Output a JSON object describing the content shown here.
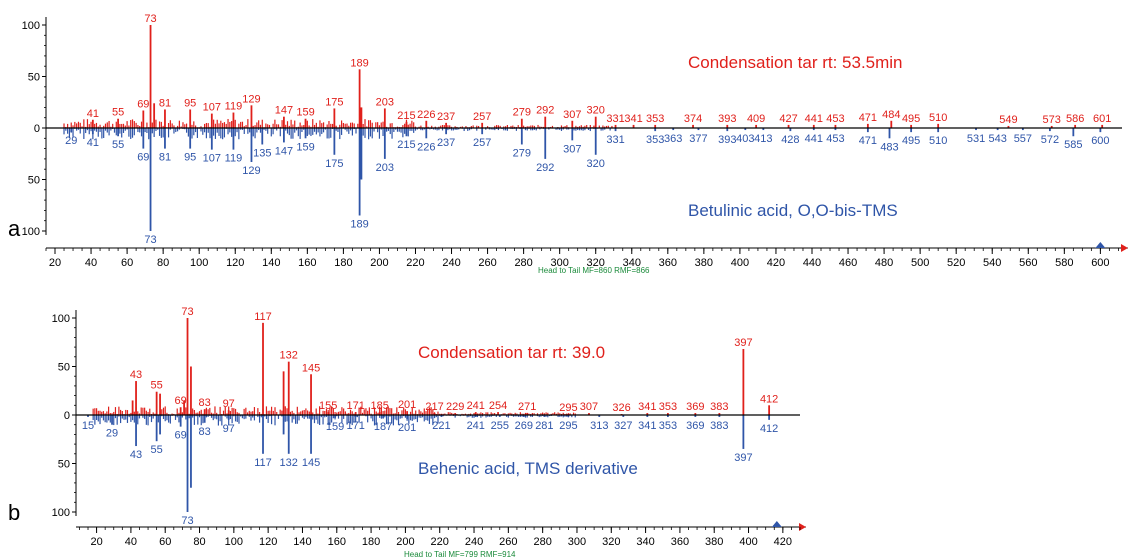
{
  "colors": {
    "head": "#e0201b",
    "tail": "#2f55a8",
    "axis": "#000000",
    "footer": "#1a8a3a"
  },
  "chart_data": [
    {
      "type": "bar",
      "panel": "a",
      "style": "head-to-tail mass spectrum",
      "head_title": "Condensation tar rt: 53.5min",
      "tail_title": "Betulinic acid, O,O-bis-TMS",
      "footer": "Head to Tail MF=860 RMF=866",
      "xlim": [
        15,
        612
      ],
      "xticks": [
        20,
        40,
        60,
        80,
        100,
        120,
        140,
        160,
        180,
        200,
        220,
        240,
        260,
        280,
        300,
        320,
        340,
        360,
        380,
        400,
        420,
        440,
        460,
        480,
        500,
        520,
        540,
        560,
        580,
        600
      ],
      "yticks": [
        100,
        50,
        0,
        50,
        100
      ],
      "head_peaks": [
        {
          "mz": 41,
          "i": 8,
          "label": "41"
        },
        {
          "mz": 55,
          "i": 9,
          "label": "55"
        },
        {
          "mz": 69,
          "i": 17,
          "label": "69"
        },
        {
          "mz": 73,
          "i": 100,
          "label": "73"
        },
        {
          "mz": 75,
          "i": 24,
          "label": ""
        },
        {
          "mz": 81,
          "i": 18,
          "label": "81"
        },
        {
          "mz": 95,
          "i": 18,
          "label": "95"
        },
        {
          "mz": 107,
          "i": 14,
          "label": "107"
        },
        {
          "mz": 119,
          "i": 15,
          "label": "119"
        },
        {
          "mz": 129,
          "i": 22,
          "label": "129"
        },
        {
          "mz": 147,
          "i": 11,
          "label": "147"
        },
        {
          "mz": 159,
          "i": 9,
          "label": "159"
        },
        {
          "mz": 175,
          "i": 19,
          "label": "175"
        },
        {
          "mz": 189,
          "i": 57,
          "label": "189"
        },
        {
          "mz": 190,
          "i": 20,
          "label": ""
        },
        {
          "mz": 203,
          "i": 19,
          "label": "203"
        },
        {
          "mz": 215,
          "i": 6,
          "label": "215"
        },
        {
          "mz": 226,
          "i": 7,
          "label": "226"
        },
        {
          "mz": 237,
          "i": 5,
          "label": "237"
        },
        {
          "mz": 257,
          "i": 5,
          "label": "257"
        },
        {
          "mz": 279,
          "i": 9,
          "label": "279"
        },
        {
          "mz": 292,
          "i": 11,
          "label": "292"
        },
        {
          "mz": 307,
          "i": 7,
          "label": "307"
        },
        {
          "mz": 320,
          "i": 11,
          "label": "320"
        },
        {
          "mz": 331,
          "i": 3,
          "label": "331"
        },
        {
          "mz": 341,
          "i": 3,
          "label": "341"
        },
        {
          "mz": 353,
          "i": 3,
          "label": "353"
        },
        {
          "mz": 374,
          "i": 3,
          "label": "374"
        },
        {
          "mz": 393,
          "i": 3,
          "label": "393"
        },
        {
          "mz": 409,
          "i": 3,
          "label": "409"
        },
        {
          "mz": 427,
          "i": 3,
          "label": "427"
        },
        {
          "mz": 441,
          "i": 3,
          "label": "441"
        },
        {
          "mz": 453,
          "i": 3,
          "label": "453"
        },
        {
          "mz": 471,
          "i": 4,
          "label": "471"
        },
        {
          "mz": 484,
          "i": 7,
          "label": "484"
        },
        {
          "mz": 495,
          "i": 3,
          "label": "495"
        },
        {
          "mz": 510,
          "i": 4,
          "label": "510"
        },
        {
          "mz": 549,
          "i": 2,
          "label": "549"
        },
        {
          "mz": 573,
          "i": 2,
          "label": "573"
        },
        {
          "mz": 586,
          "i": 3,
          "label": "586"
        },
        {
          "mz": 601,
          "i": 3,
          "label": "601"
        }
      ],
      "tail_peaks": [
        {
          "mz": 29,
          "i": 4,
          "label": "29"
        },
        {
          "mz": 41,
          "i": 6,
          "label": "41"
        },
        {
          "mz": 55,
          "i": 8,
          "label": "55"
        },
        {
          "mz": 69,
          "i": 20,
          "label": "69"
        },
        {
          "mz": 73,
          "i": 100,
          "label": "73"
        },
        {
          "mz": 81,
          "i": 20,
          "label": "81"
        },
        {
          "mz": 95,
          "i": 20,
          "label": "95"
        },
        {
          "mz": 107,
          "i": 21,
          "label": "107"
        },
        {
          "mz": 119,
          "i": 21,
          "label": "119"
        },
        {
          "mz": 129,
          "i": 33,
          "label": "129"
        },
        {
          "mz": 135,
          "i": 16,
          "label": "135"
        },
        {
          "mz": 147,
          "i": 14,
          "label": "147"
        },
        {
          "mz": 159,
          "i": 10,
          "label": "159"
        },
        {
          "mz": 175,
          "i": 26,
          "label": "175"
        },
        {
          "mz": 189,
          "i": 85,
          "label": "189"
        },
        {
          "mz": 190,
          "i": 50,
          "label": ""
        },
        {
          "mz": 203,
          "i": 30,
          "label": "203"
        },
        {
          "mz": 215,
          "i": 8,
          "label": "215"
        },
        {
          "mz": 226,
          "i": 10,
          "label": "226"
        },
        {
          "mz": 237,
          "i": 6,
          "label": "237"
        },
        {
          "mz": 257,
          "i": 6,
          "label": "257"
        },
        {
          "mz": 279,
          "i": 16,
          "label": "279"
        },
        {
          "mz": 292,
          "i": 30,
          "label": "292"
        },
        {
          "mz": 307,
          "i": 12,
          "label": "307"
        },
        {
          "mz": 320,
          "i": 26,
          "label": "320"
        },
        {
          "mz": 331,
          "i": 3,
          "label": "331"
        },
        {
          "mz": 353,
          "i": 3,
          "label": "353"
        },
        {
          "mz": 363,
          "i": 2,
          "label": "363"
        },
        {
          "mz": 377,
          "i": 2,
          "label": "377"
        },
        {
          "mz": 393,
          "i": 3,
          "label": "393"
        },
        {
          "mz": 403,
          "i": 2,
          "label": "403"
        },
        {
          "mz": 413,
          "i": 2,
          "label": "413"
        },
        {
          "mz": 428,
          "i": 3,
          "label": "428"
        },
        {
          "mz": 441,
          "i": 2,
          "label": "441"
        },
        {
          "mz": 453,
          "i": 2,
          "label": "453"
        },
        {
          "mz": 471,
          "i": 4,
          "label": "471"
        },
        {
          "mz": 483,
          "i": 10,
          "label": "483"
        },
        {
          "mz": 495,
          "i": 4,
          "label": "495"
        },
        {
          "mz": 510,
          "i": 4,
          "label": "510"
        },
        {
          "mz": 531,
          "i": 2,
          "label": "531"
        },
        {
          "mz": 543,
          "i": 2,
          "label": "543"
        },
        {
          "mz": 557,
          "i": 2,
          "label": "557"
        },
        {
          "mz": 572,
          "i": 3,
          "label": "572"
        },
        {
          "mz": 585,
          "i": 8,
          "label": "585"
        },
        {
          "mz": 600,
          "i": 4,
          "label": "600"
        }
      ]
    },
    {
      "type": "bar",
      "panel": "b",
      "style": "head-to-tail mass spectrum",
      "head_title": "Condensation tar rt: 39.0",
      "tail_title": "Behenic acid, TMS derivative",
      "footer": "Head to Tail MF=799 RMF=914",
      "xlim": [
        8,
        430
      ],
      "xticks": [
        20,
        40,
        60,
        80,
        100,
        120,
        140,
        160,
        180,
        200,
        220,
        240,
        260,
        280,
        300,
        320,
        340,
        360,
        380,
        400,
        420
      ],
      "yticks": [
        100,
        50,
        0,
        50,
        100
      ],
      "head_peaks": [
        {
          "mz": 41,
          "i": 15,
          "label": ""
        },
        {
          "mz": 43,
          "i": 35,
          "label": "43"
        },
        {
          "mz": 55,
          "i": 24,
          "label": "55"
        },
        {
          "mz": 57,
          "i": 22,
          "label": ""
        },
        {
          "mz": 69,
          "i": 8,
          "label": "69"
        },
        {
          "mz": 71,
          "i": 15,
          "label": ""
        },
        {
          "mz": 73,
          "i": 100,
          "label": "73"
        },
        {
          "mz": 75,
          "i": 50,
          "label": ""
        },
        {
          "mz": 83,
          "i": 6,
          "label": "83"
        },
        {
          "mz": 97,
          "i": 5,
          "label": "97"
        },
        {
          "mz": 117,
          "i": 95,
          "label": "117"
        },
        {
          "mz": 129,
          "i": 45,
          "label": ""
        },
        {
          "mz": 132,
          "i": 55,
          "label": "132"
        },
        {
          "mz": 145,
          "i": 42,
          "label": "145"
        },
        {
          "mz": 155,
          "i": 3,
          "label": "155"
        },
        {
          "mz": 171,
          "i": 3,
          "label": "171"
        },
        {
          "mz": 185,
          "i": 3,
          "label": "185"
        },
        {
          "mz": 201,
          "i": 4,
          "label": "201"
        },
        {
          "mz": 217,
          "i": 2,
          "label": "217"
        },
        {
          "mz": 229,
          "i": 2,
          "label": "229"
        },
        {
          "mz": 241,
          "i": 3,
          "label": "241"
        },
        {
          "mz": 254,
          "i": 3,
          "label": "254"
        },
        {
          "mz": 271,
          "i": 2,
          "label": "271"
        },
        {
          "mz": 295,
          "i": 1,
          "label": "295"
        },
        {
          "mz": 307,
          "i": 2,
          "label": "307"
        },
        {
          "mz": 326,
          "i": 1,
          "label": "326"
        },
        {
          "mz": 341,
          "i": 2,
          "label": "341"
        },
        {
          "mz": 353,
          "i": 2,
          "label": "353"
        },
        {
          "mz": 369,
          "i": 2,
          "label": "369"
        },
        {
          "mz": 383,
          "i": 2,
          "label": "383"
        },
        {
          "mz": 397,
          "i": 68,
          "label": "397"
        },
        {
          "mz": 412,
          "i": 10,
          "label": "412"
        }
      ],
      "tail_peaks": [
        {
          "mz": 15,
          "i": 2,
          "label": "15"
        },
        {
          "mz": 29,
          "i": 10,
          "label": "29"
        },
        {
          "mz": 43,
          "i": 32,
          "label": "43"
        },
        {
          "mz": 55,
          "i": 27,
          "label": "55"
        },
        {
          "mz": 57,
          "i": 20,
          "label": ""
        },
        {
          "mz": 69,
          "i": 12,
          "label": "69"
        },
        {
          "mz": 73,
          "i": 100,
          "label": "73"
        },
        {
          "mz": 75,
          "i": 75,
          "label": ""
        },
        {
          "mz": 83,
          "i": 8,
          "label": "83"
        },
        {
          "mz": 97,
          "i": 5,
          "label": "97"
        },
        {
          "mz": 117,
          "i": 40,
          "label": "117"
        },
        {
          "mz": 129,
          "i": 20,
          "label": ""
        },
        {
          "mz": 132,
          "i": 40,
          "label": "132"
        },
        {
          "mz": 145,
          "i": 40,
          "label": "145"
        },
        {
          "mz": 159,
          "i": 3,
          "label": "159"
        },
        {
          "mz": 171,
          "i": 2,
          "label": "171"
        },
        {
          "mz": 187,
          "i": 3,
          "label": "187"
        },
        {
          "mz": 201,
          "i": 4,
          "label": "201"
        },
        {
          "mz": 221,
          "i": 2,
          "label": "221"
        },
        {
          "mz": 241,
          "i": 2,
          "label": "241"
        },
        {
          "mz": 255,
          "i": 2,
          "label": "255"
        },
        {
          "mz": 269,
          "i": 2,
          "label": "269"
        },
        {
          "mz": 281,
          "i": 2,
          "label": "281"
        },
        {
          "mz": 295,
          "i": 2,
          "label": "295"
        },
        {
          "mz": 313,
          "i": 2,
          "label": "313"
        },
        {
          "mz": 327,
          "i": 2,
          "label": "327"
        },
        {
          "mz": 341,
          "i": 2,
          "label": "341"
        },
        {
          "mz": 353,
          "i": 2,
          "label": "353"
        },
        {
          "mz": 369,
          "i": 2,
          "label": "369"
        },
        {
          "mz": 383,
          "i": 2,
          "label": "383"
        },
        {
          "mz": 397,
          "i": 35,
          "label": "397"
        },
        {
          "mz": 412,
          "i": 5,
          "label": "412"
        }
      ]
    }
  ]
}
